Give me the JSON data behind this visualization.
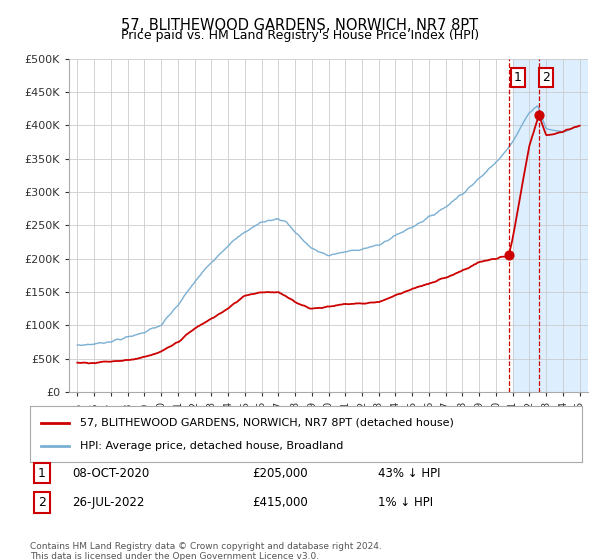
{
  "title": "57, BLITHEWOOD GARDENS, NORWICH, NR7 8PT",
  "subtitle": "Price paid vs. HM Land Registry's House Price Index (HPI)",
  "legend_label_red": "57, BLITHEWOOD GARDENS, NORWICH, NR7 8PT (detached house)",
  "legend_label_blue": "HPI: Average price, detached house, Broadland",
  "annotation1_date": "08-OCT-2020",
  "annotation1_price": "£205,000",
  "annotation1_pct": "43% ↓ HPI",
  "annotation2_date": "26-JUL-2022",
  "annotation2_price": "£415,000",
  "annotation2_pct": "1% ↓ HPI",
  "footer": "Contains HM Land Registry data © Crown copyright and database right 2024.\nThis data is licensed under the Open Government Licence v3.0.",
  "ylim": [
    0,
    500000
  ],
  "yticks": [
    0,
    50000,
    100000,
    150000,
    200000,
    250000,
    300000,
    350000,
    400000,
    450000,
    500000
  ],
  "ytick_labels": [
    "£0",
    "£50K",
    "£100K",
    "£150K",
    "£200K",
    "£250K",
    "£300K",
    "£350K",
    "£400K",
    "£450K",
    "£500K"
  ],
  "red_color": "#cc0000",
  "blue_color": "#7ab0d4",
  "highlight_color": "#ddeeff",
  "annotation_line_color": "#cc0000",
  "background_color": "#ffffff",
  "grid_color": "#cccccc",
  "ann1_x": 2020.77,
  "ann1_y": 205000,
  "ann2_x": 2022.57,
  "ann2_y": 415000,
  "xmin": 1994.5,
  "xmax": 2025.5,
  "shade_x0": 2021.0,
  "shade_x1": 2025.5,
  "blue_control_x": [
    1995,
    1996,
    1997,
    1998,
    1999,
    2000,
    2001,
    2002,
    2003,
    2004,
    2005,
    2006,
    2007,
    2007.5,
    2008,
    2009,
    2010,
    2011,
    2012,
    2013,
    2014,
    2015,
    2016,
    2017,
    2018,
    2019,
    2020,
    2021,
    2022,
    2022.5,
    2023,
    2024,
    2025
  ],
  "blue_control_y": [
    70000,
    72000,
    76000,
    82000,
    90000,
    100000,
    130000,
    165000,
    195000,
    220000,
    240000,
    255000,
    260000,
    255000,
    240000,
    215000,
    205000,
    210000,
    215000,
    220000,
    235000,
    248000,
    262000,
    278000,
    298000,
    320000,
    345000,
    375000,
    420000,
    430000,
    395000,
    390000,
    400000
  ],
  "red_control_x": [
    1995,
    1996,
    1997,
    1998,
    1999,
    2000,
    2001,
    2002,
    2003,
    2004,
    2005,
    2006,
    2007,
    2008,
    2009,
    2010,
    2011,
    2012,
    2013,
    2014,
    2015,
    2016,
    2017,
    2018,
    2019,
    2020,
    2020.77,
    2021,
    2022,
    2022.57,
    2023,
    2024,
    2025
  ],
  "red_control_y": [
    44000,
    44000,
    46000,
    48000,
    52000,
    60000,
    75000,
    95000,
    110000,
    125000,
    145000,
    150000,
    150000,
    135000,
    125000,
    128000,
    132000,
    133000,
    135000,
    145000,
    155000,
    162000,
    172000,
    182000,
    195000,
    200000,
    205000,
    230000,
    370000,
    415000,
    385000,
    390000,
    400000
  ]
}
